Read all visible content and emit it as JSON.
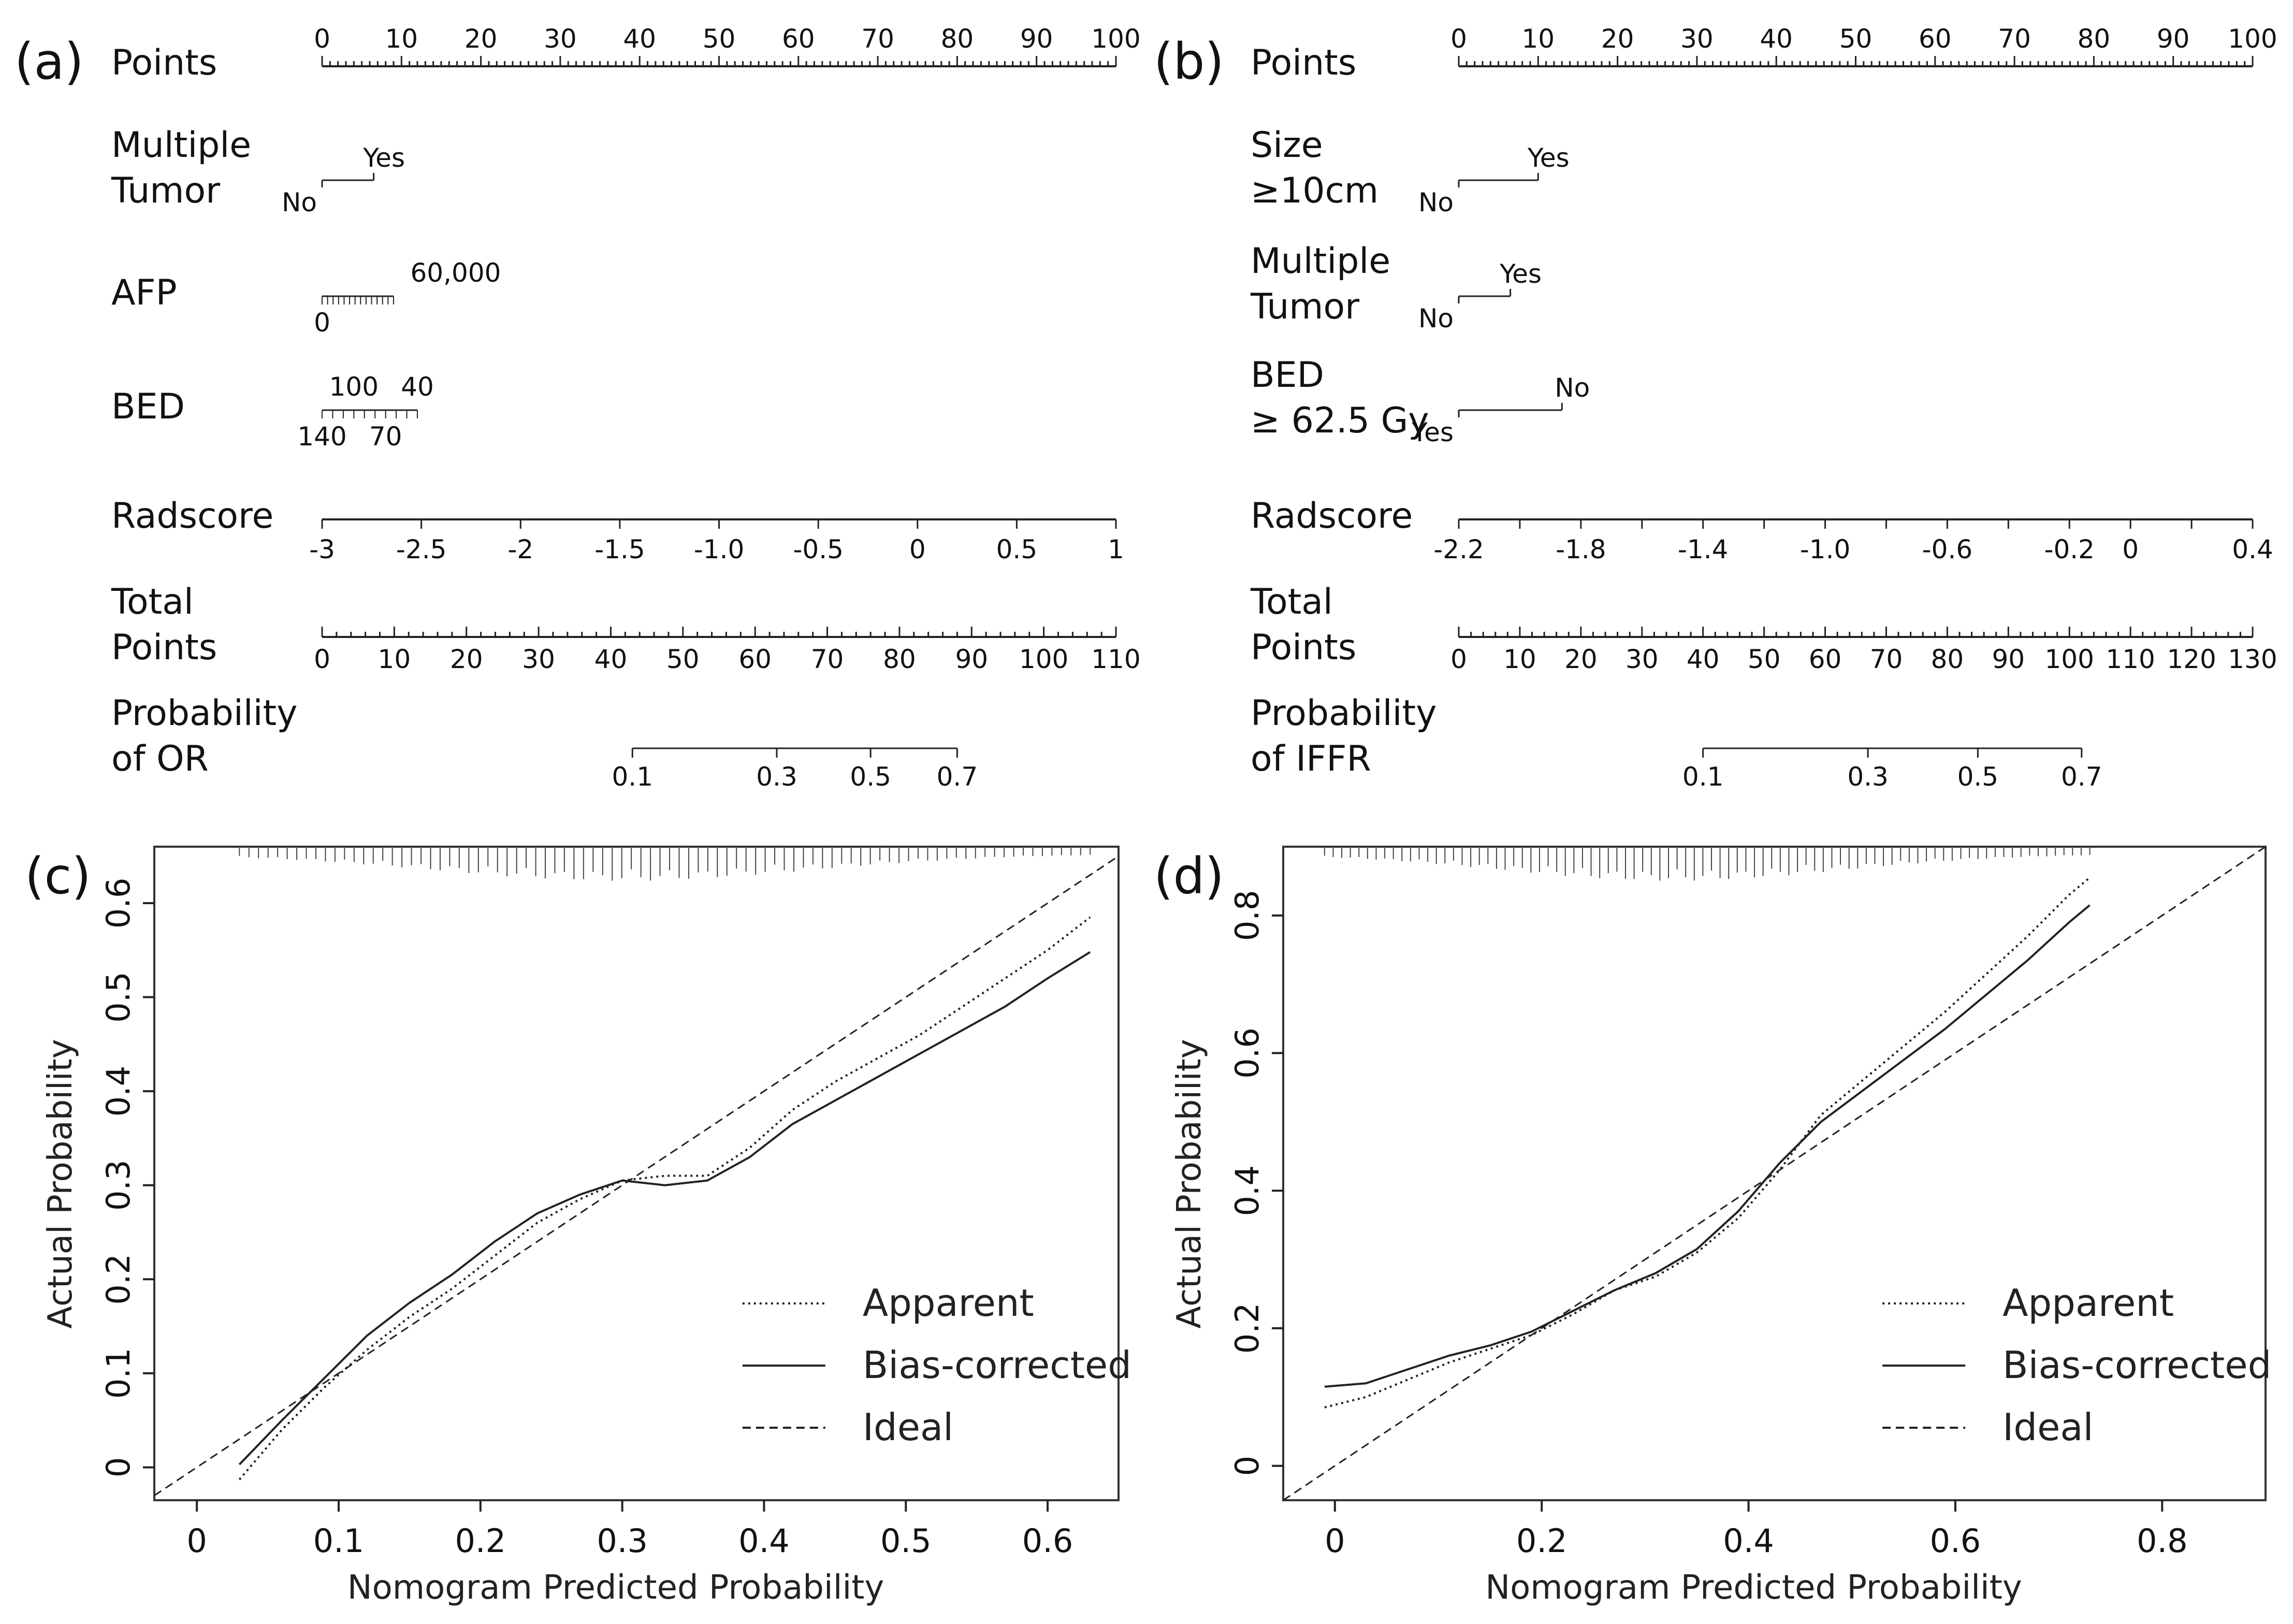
{
  "chart_data": [
    {
      "type": "nomogram",
      "panel": "(a)",
      "rows": [
        {
          "label": [
            "Points"
          ],
          "axis": "points",
          "range": [
            0,
            100
          ],
          "ticks": [
            "0",
            "10",
            "20",
            "30",
            "40",
            "50",
            "60",
            "70",
            "80",
            "90",
            "100"
          ]
        },
        {
          "label": [
            "Multiple",
            "Tumor"
          ],
          "axis": "categorical",
          "levels": [
            {
              "name": "No",
              "points": 0
            },
            {
              "name": "Yes",
              "points": 6.5
            }
          ]
        },
        {
          "label": [
            "AFP"
          ],
          "axis": "continuous",
          "levels": [
            {
              "name": "0",
              "points": 0
            },
            {
              "name": "60,000",
              "points": 9
            }
          ]
        },
        {
          "label": [
            "BED"
          ],
          "axis": "continuous",
          "levels": [
            {
              "name": "140",
              "points": 0
            },
            {
              "name": "100",
              "points": 4
            },
            {
              "name": "70",
              "points": 8
            },
            {
              "name": "40",
              "points": 12
            }
          ]
        },
        {
          "label": [
            "Radscore"
          ],
          "axis": "continuous",
          "range": [
            -3,
            1
          ],
          "ticks": [
            "-3",
            "-2.5",
            "-2",
            "-1.5",
            "-1.0",
            "-0.5",
            "0",
            "0.5",
            "1"
          ]
        },
        {
          "label": [
            "Total",
            "Points"
          ],
          "axis": "total",
          "range": [
            0,
            110
          ],
          "ticks": [
            "0",
            "10",
            "20",
            "30",
            "40",
            "50",
            "60",
            "70",
            "80",
            "90",
            "100",
            "110"
          ]
        },
        {
          "label": [
            "Probability",
            "of OR"
          ],
          "axis": "probability",
          "ticks": [
            {
              "label": "0.1",
              "total_points": 43
            },
            {
              "label": "0.3",
              "total_points": 63
            },
            {
              "label": "0.5",
              "total_points": 76
            },
            {
              "label": "0.7",
              "total_points": 88
            }
          ]
        }
      ]
    },
    {
      "type": "nomogram",
      "panel": "(b)",
      "rows": [
        {
          "label": [
            "Points"
          ],
          "axis": "points",
          "range": [
            0,
            100
          ],
          "ticks": [
            "0",
            "10",
            "20",
            "30",
            "40",
            "50",
            "60",
            "70",
            "80",
            "90",
            "100"
          ]
        },
        {
          "label": [
            "Size",
            "≥10cm"
          ],
          "axis": "categorical",
          "levels": [
            {
              "name": "No",
              "points": 0
            },
            {
              "name": "Yes",
              "points": 10
            }
          ]
        },
        {
          "label": [
            "Multiple",
            "Tumor"
          ],
          "axis": "categorical",
          "levels": [
            {
              "name": "No",
              "points": 0
            },
            {
              "name": "Yes",
              "points": 6.5
            }
          ]
        },
        {
          "label": [
            "BED",
            "≥ 62.5 Gy"
          ],
          "axis": "categorical",
          "levels": [
            {
              "name": "Yes",
              "points": 0
            },
            {
              "name": "No",
              "points": 13
            }
          ]
        },
        {
          "label": [
            "Radscore"
          ],
          "axis": "continuous",
          "range": [
            -2.2,
            0.4
          ],
          "ticks": [
            "-2.2",
            "-1.8",
            "-1.4",
            "-1.0",
            "-0.6",
            "-0.2",
            "0",
            "0.4"
          ]
        },
        {
          "label": [
            "Total",
            "Points"
          ],
          "axis": "total",
          "range": [
            0,
            130
          ],
          "ticks": [
            "0",
            "10",
            "20",
            "30",
            "40",
            "50",
            "60",
            "70",
            "80",
            "90",
            "100",
            "110",
            "120",
            "130"
          ]
        },
        {
          "label": [
            "Probability",
            "of IFFR"
          ],
          "axis": "probability",
          "ticks": [
            {
              "label": "0.1",
              "total_points": 40
            },
            {
              "label": "0.3",
              "total_points": 67
            },
            {
              "label": "0.5",
              "total_points": 85
            },
            {
              "label": "0.7",
              "total_points": 102
            }
          ]
        }
      ]
    },
    {
      "type": "line",
      "panel": "(c)",
      "xlabel": "Nomogram Predicted Probability",
      "ylabel": "Actual Probability",
      "xlim": [
        -0.03,
        0.65
      ],
      "ylim": [
        -0.035,
        0.66
      ],
      "xticks": [
        "0",
        "0.1",
        "0.2",
        "0.3",
        "0.4",
        "0.5",
        "0.6"
      ],
      "yticks": [
        "0",
        "0.1",
        "0.2",
        "0.3",
        "0.4",
        "0.5",
        "0.6"
      ],
      "legend": {
        "position": "bottom-right",
        "entries": [
          "Apparent",
          "Bias-corrected",
          "Ideal"
        ]
      },
      "series": [
        {
          "name": "Apparent",
          "style": "dotted",
          "x": [
            0.03,
            0.06,
            0.09,
            0.12,
            0.15,
            0.18,
            0.21,
            0.24,
            0.27,
            0.3,
            0.33,
            0.36,
            0.39,
            0.42,
            0.45,
            0.48,
            0.51,
            0.54,
            0.57,
            0.6,
            0.63
          ],
          "y": [
            -0.013,
            0.04,
            0.085,
            0.125,
            0.16,
            0.19,
            0.225,
            0.26,
            0.285,
            0.305,
            0.31,
            0.31,
            0.34,
            0.38,
            0.41,
            0.435,
            0.46,
            0.49,
            0.52,
            0.55,
            0.585
          ]
        },
        {
          "name": "Bias-corrected",
          "style": "solid",
          "x": [
            0.03,
            0.06,
            0.09,
            0.12,
            0.15,
            0.18,
            0.21,
            0.24,
            0.27,
            0.3,
            0.33,
            0.36,
            0.39,
            0.42,
            0.45,
            0.48,
            0.51,
            0.54,
            0.57,
            0.6,
            0.63
          ],
          "y": [
            0.003,
            0.05,
            0.095,
            0.14,
            0.175,
            0.205,
            0.24,
            0.27,
            0.29,
            0.305,
            0.3,
            0.305,
            0.33,
            0.365,
            0.39,
            0.415,
            0.44,
            0.465,
            0.49,
            0.52,
            0.548
          ]
        },
        {
          "name": "Ideal",
          "style": "dashed",
          "x": [
            -0.03,
            0.65
          ],
          "y": [
            -0.03,
            0.65
          ]
        }
      ],
      "rug": "predicted probability distribution (top)"
    },
    {
      "type": "line",
      "panel": "(d)",
      "xlabel": "Nomogram Predicted Probability",
      "ylabel": "Actual Probability",
      "xlim": [
        -0.05,
        0.9
      ],
      "ylim": [
        -0.05,
        0.9
      ],
      "xticks": [
        "0",
        "0.2",
        "0.4",
        "0.6",
        "0.8"
      ],
      "yticks": [
        "0",
        "0.2",
        "0.4",
        "0.6",
        "0.8"
      ],
      "legend": {
        "position": "bottom-right",
        "entries": [
          "Apparent",
          "Bias-corrected",
          "Ideal"
        ]
      },
      "series": [
        {
          "name": "Apparent",
          "style": "dotted",
          "x": [
            -0.01,
            0.03,
            0.07,
            0.11,
            0.15,
            0.19,
            0.23,
            0.27,
            0.31,
            0.35,
            0.39,
            0.43,
            0.47,
            0.51,
            0.55,
            0.59,
            0.63,
            0.67,
            0.71,
            0.73
          ],
          "y": [
            0.085,
            0.1,
            0.125,
            0.15,
            0.17,
            0.19,
            0.22,
            0.255,
            0.275,
            0.31,
            0.36,
            0.43,
            0.51,
            0.56,
            0.61,
            0.66,
            0.715,
            0.77,
            0.83,
            0.855
          ]
        },
        {
          "name": "Bias-corrected",
          "style": "solid",
          "x": [
            -0.01,
            0.03,
            0.07,
            0.11,
            0.15,
            0.19,
            0.23,
            0.27,
            0.31,
            0.35,
            0.39,
            0.43,
            0.47,
            0.51,
            0.55,
            0.59,
            0.63,
            0.67,
            0.71,
            0.73
          ],
          "y": [
            0.115,
            0.12,
            0.14,
            0.16,
            0.175,
            0.195,
            0.225,
            0.255,
            0.28,
            0.315,
            0.37,
            0.44,
            0.5,
            0.545,
            0.59,
            0.635,
            0.685,
            0.735,
            0.79,
            0.815
          ]
        },
        {
          "name": "Ideal",
          "style": "dashed",
          "x": [
            -0.05,
            0.9
          ],
          "y": [
            -0.05,
            0.9
          ]
        }
      ],
      "rug": "predicted probability distribution (top)"
    }
  ]
}
